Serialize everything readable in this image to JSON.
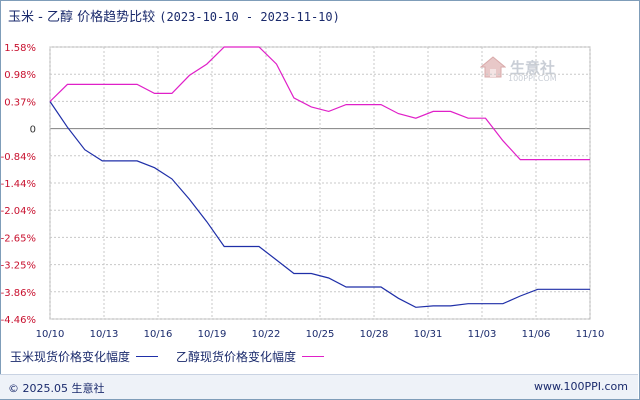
{
  "header": {
    "title": "玉米 - 乙醇 价格趋势比较",
    "date_range": "(2023-10-10 - 2023-11-10)"
  },
  "watermark": {
    "name": "生意社",
    "url": "100PPI.COM"
  },
  "footer": {
    "copyright": "© 2025.05 生意社",
    "site": "www.100PPI.com"
  },
  "colors": {
    "corn": "#1f2fa8",
    "ethanol": "#e020c8",
    "grid": "#c8c8c8",
    "zero": "#808080"
  },
  "chart_data": {
    "type": "line",
    "title": "玉米 - 乙醇 价格趋势比较",
    "xlabel": "",
    "ylabel": "",
    "y_unit": "%",
    "y_ticks": [
      "1.58%",
      "0.98%",
      "0.37%",
      "0",
      "-0.84%",
      "-1.44%",
      "-2.04%",
      "-2.65%",
      "-3.25%",
      "-3.86%",
      "-4.46%"
    ],
    "y_tick_values": [
      1.58,
      0.98,
      0.37,
      0,
      -0.84,
      -1.44,
      -2.04,
      -2.65,
      -3.25,
      -3.86,
      -4.46
    ],
    "ylim": [
      -4.46,
      1.58
    ],
    "x_ticks": [
      "10/10",
      "10/13",
      "10/16",
      "10/19",
      "10/22",
      "10/25",
      "10/28",
      "10/31",
      "11/03",
      "11/06",
      "11/10"
    ],
    "x": [
      "10/10",
      "10/11",
      "10/12",
      "10/13",
      "10/14",
      "10/15",
      "10/16",
      "10/17",
      "10/18",
      "10/19",
      "10/20",
      "10/21",
      "10/22",
      "10/23",
      "10/24",
      "10/25",
      "10/26",
      "10/27",
      "10/28",
      "10/29",
      "10/30",
      "10/31",
      "11/01",
      "11/02",
      "11/03",
      "11/04",
      "11/05",
      "11/06",
      "11/07",
      "11/08",
      "11/09",
      "11/10"
    ],
    "grid": true,
    "legend_position": "bottom-left",
    "series": [
      {
        "name": "玉米现货价格变化幅度",
        "color": "#1f2fa8",
        "values": [
          0.37,
          -0.2,
          -0.7,
          -0.95,
          -0.95,
          -0.95,
          -1.1,
          -1.35,
          -1.8,
          -2.3,
          -2.85,
          -2.85,
          -2.85,
          -3.15,
          -3.45,
          -3.45,
          -3.55,
          -3.75,
          -3.75,
          -3.75,
          -4.0,
          -4.2,
          -4.17,
          -4.17,
          -4.12,
          -4.12,
          -4.12,
          -3.95,
          -3.8,
          -3.8,
          -3.8,
          -3.8
        ]
      },
      {
        "name": "乙醇现货价格变化幅度",
        "color": "#e020c8",
        "values": [
          0.37,
          0.75,
          0.75,
          0.75,
          0.75,
          0.75,
          0.55,
          0.55,
          0.95,
          1.2,
          1.58,
          1.58,
          1.58,
          1.2,
          0.45,
          0.25,
          0.15,
          0.3,
          0.3,
          0.3,
          0.1,
          0.0,
          0.15,
          0.15,
          0.0,
          0.0,
          -0.5,
          -0.92,
          -0.92,
          -0.92,
          -0.92,
          -0.92
        ]
      }
    ]
  }
}
